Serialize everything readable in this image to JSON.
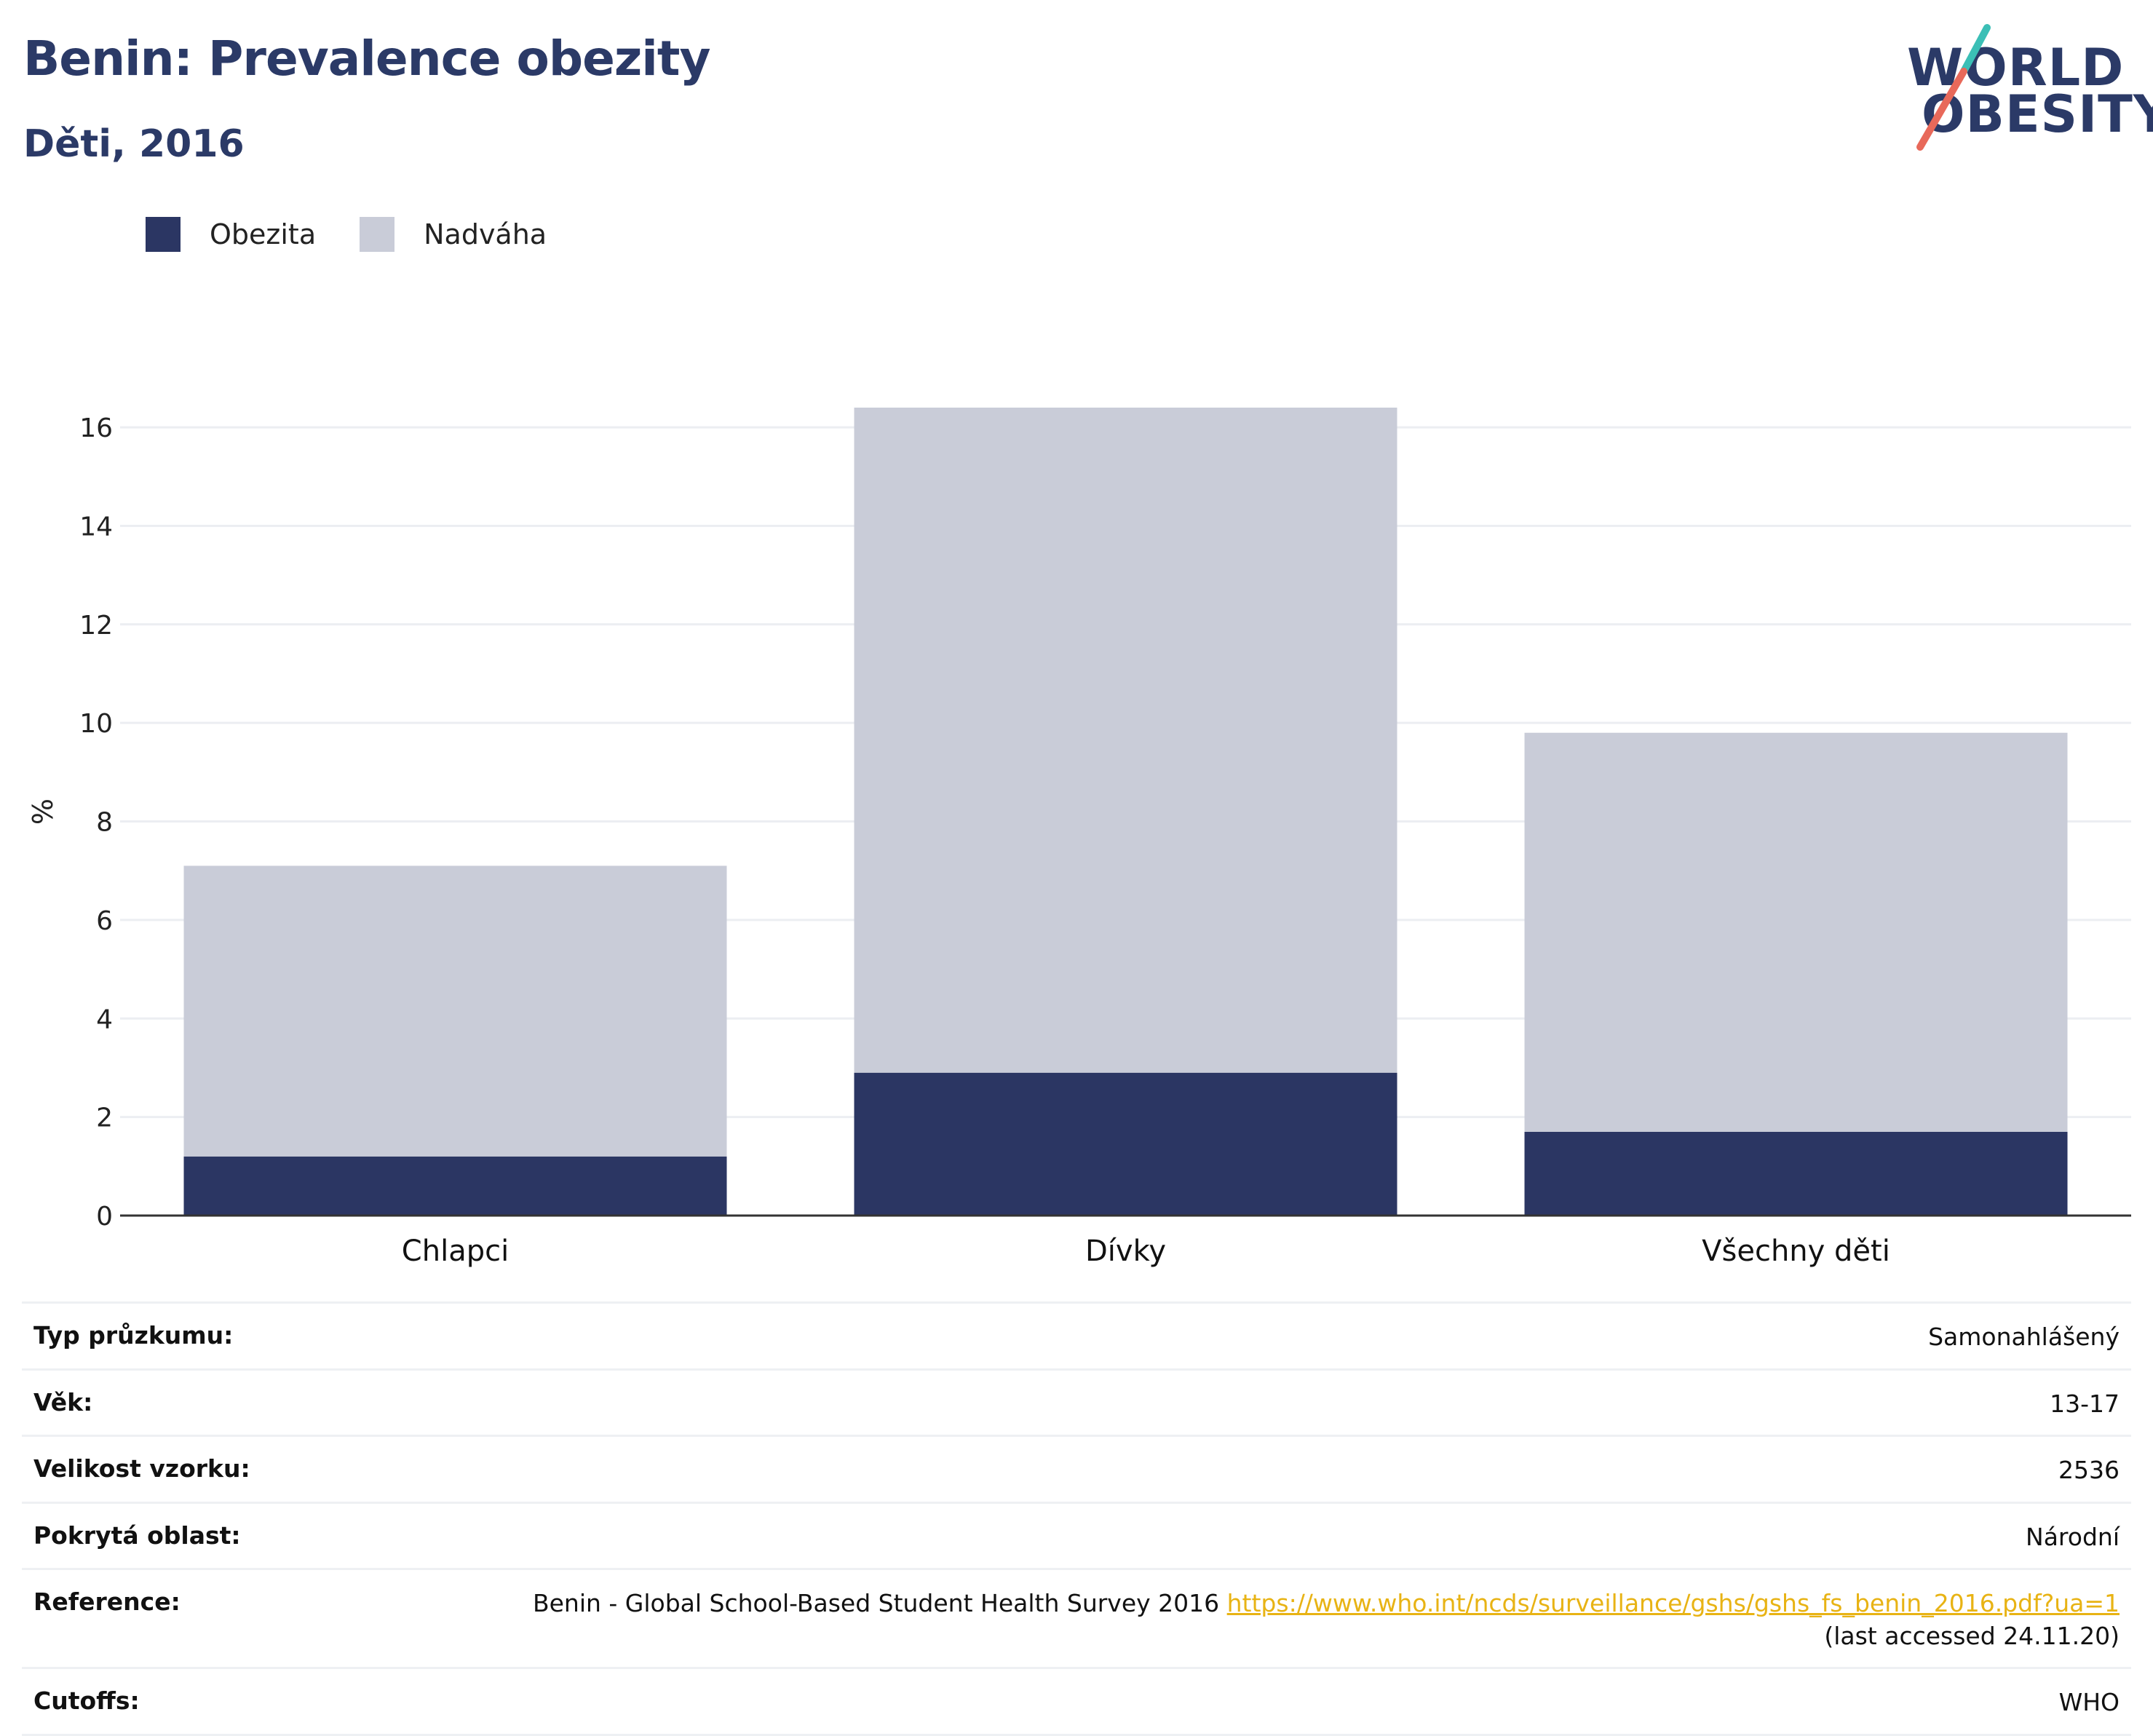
{
  "header": {
    "title": "Benin: Prevalence obezity",
    "subtitle": "Děti, 2016"
  },
  "logo": {
    "line1": "WORLD",
    "line2": "OBESITY",
    "accent_teal": "#3bbfb6",
    "accent_coral": "#e8695a"
  },
  "colors": {
    "obesity": "#2b3663",
    "overweight": "#c9ccd8",
    "title": "#2b3a67",
    "link": "#e8b314"
  },
  "legend": [
    {
      "label": "Obezita",
      "color": "#2b3663"
    },
    {
      "label": "Nadváha",
      "color": "#c9ccd8"
    }
  ],
  "chart_data": {
    "type": "bar",
    "stacked": true,
    "categories": [
      "Chlapci",
      "Dívky",
      "Všechny děti"
    ],
    "series": [
      {
        "name": "Obezita",
        "values": [
          1.2,
          2.9,
          1.7
        ]
      },
      {
        "name": "Nadváha",
        "values": [
          5.9,
          13.5,
          8.1
        ]
      }
    ],
    "ylabel": "%",
    "ylim": [
      0,
      16.4
    ],
    "yticks": [
      0,
      2,
      4,
      6,
      8,
      10,
      12,
      14,
      16
    ],
    "grid": true,
    "legend_position": "top-left"
  },
  "info": {
    "rows": [
      {
        "label": "Typ průzkumu:",
        "value": "Samonahlášený"
      },
      {
        "label": "Věk:",
        "value": "13-17"
      },
      {
        "label": "Velikost vzorku:",
        "value": "2536"
      },
      {
        "label": "Pokrytá oblast:",
        "value": "Národní"
      }
    ],
    "reference": {
      "label": "Reference:",
      "text": "Benin - Global School-Based Student Health Survey 2016 ",
      "link": "https://www.who.int/ncds/surveillance/gshs/gshs_fs_benin_2016.pdf?ua=1",
      "accessed": "(last accessed 24.11.20)"
    },
    "cutoffs": {
      "label": "Cutoffs:",
      "value": "WHO"
    }
  }
}
